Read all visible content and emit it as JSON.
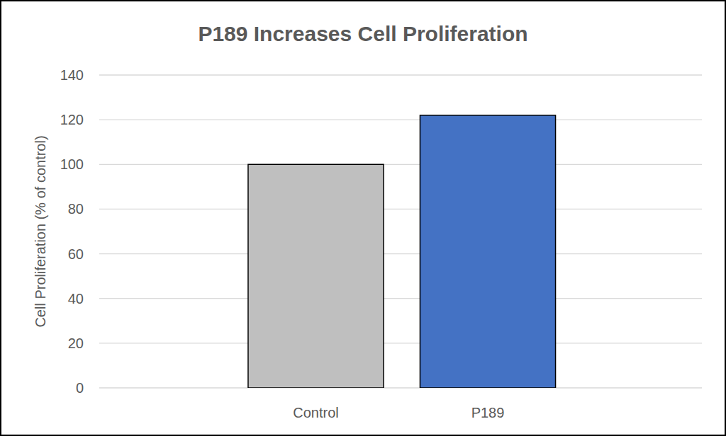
{
  "chart_data": {
    "type": "bar",
    "title": "P189 Increases Cell Proliferation",
    "y_label": "Cell Proliferation (% of control)",
    "categories": [
      "Control",
      "P189"
    ],
    "values": [
      100,
      122
    ],
    "colors": [
      "#bfbfbf",
      "#4472c4"
    ],
    "ylim": [
      0,
      140
    ],
    "yticks": [
      0,
      20,
      40,
      60,
      80,
      100,
      120,
      140
    ],
    "grid": true
  }
}
